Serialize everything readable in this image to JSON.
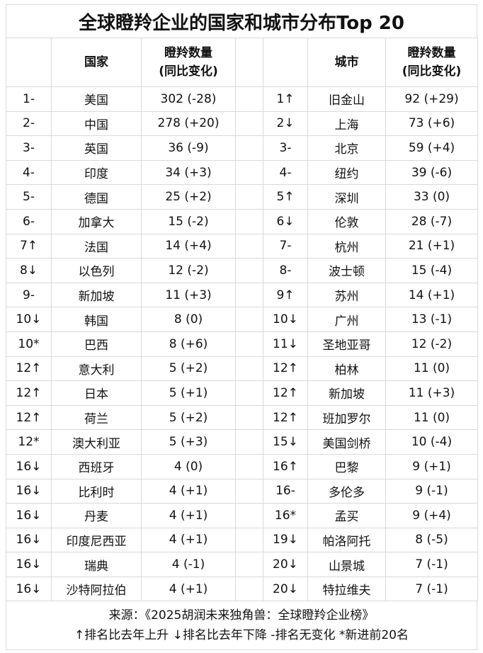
{
  "title": "全球瞪羚企业的国家和城市分布Top 20",
  "headers": {
    "country": "国家",
    "country_count": [
      "瞪羚数量",
      "(同比变化)"
    ],
    "city": "城市",
    "city_count": [
      "瞪羚数量",
      "(同比变化)"
    ]
  },
  "countries": [
    {
      "rank": "1-",
      "name": "美国",
      "count": "302 (-28)"
    },
    {
      "rank": "2-",
      "name": "中国",
      "count": "278 (+20)"
    },
    {
      "rank": "3-",
      "name": "英国",
      "count": "36 (-9)"
    },
    {
      "rank": "4-",
      "name": "印度",
      "count": "34 (+3)"
    },
    {
      "rank": "5-",
      "name": "德国",
      "count": "25 (+2)"
    },
    {
      "rank": "6-",
      "name": "加拿大",
      "count": "15 (-2)"
    },
    {
      "rank": "7↑",
      "name": "法国",
      "count": "14 (+4)"
    },
    {
      "rank": "8↓",
      "name": "以色列",
      "count": "12 (-2)"
    },
    {
      "rank": "9-",
      "name": "新加坡",
      "count": "11 (+3)"
    },
    {
      "rank": "10↓",
      "name": "韩国",
      "count": "8 (0)"
    },
    {
      "rank": "10*",
      "name": "巴西",
      "count": "8 (+6)"
    },
    {
      "rank": "12↑",
      "name": "意大利",
      "count": "5 (+2)"
    },
    {
      "rank": "12↑",
      "name": "日本",
      "count": "5 (+1)"
    },
    {
      "rank": "12↑",
      "name": "荷兰",
      "count": "5 (+2)"
    },
    {
      "rank": "12*",
      "name": "澳大利亚",
      "count": "5 (+3)"
    },
    {
      "rank": "16↓",
      "name": "西班牙",
      "count": "4 (0)"
    },
    {
      "rank": "16↓",
      "name": "比利时",
      "count": "4 (+1)"
    },
    {
      "rank": "16↓",
      "name": "丹麦",
      "count": "4 (+1)"
    },
    {
      "rank": "16↓",
      "name": "印度尼西亚",
      "count": "4 (+1)"
    },
    {
      "rank": "16↓",
      "name": "瑞典",
      "count": "4 (-1)"
    },
    {
      "rank": "16↓",
      "name": "沙特阿拉伯",
      "count": "4 (+1)"
    }
  ],
  "cities": [
    {
      "rank": "1↑",
      "name": "旧金山",
      "count": "92 (+29)"
    },
    {
      "rank": "2↓",
      "name": "上海",
      "count": "73 (+6)"
    },
    {
      "rank": "3-",
      "name": "北京",
      "count": "59 (+4)"
    },
    {
      "rank": "4-",
      "name": "纽约",
      "count": "39 (-6)"
    },
    {
      "rank": "5↑",
      "name": "深圳",
      "count": "33 (0)"
    },
    {
      "rank": "6↓",
      "name": "伦敦",
      "count": "28 (-7)"
    },
    {
      "rank": "7-",
      "name": "杭州",
      "count": "21 (+1)"
    },
    {
      "rank": "8-",
      "name": "波士顿",
      "count": "15 (-4)"
    },
    {
      "rank": "9↑",
      "name": "苏州",
      "count": "14 (+1)"
    },
    {
      "rank": "10↓",
      "name": "广州",
      "count": "13 (-1)"
    },
    {
      "rank": "11↓",
      "name": "圣地亚哥",
      "count": "12 (-2)"
    },
    {
      "rank": "12↑",
      "name": "柏林",
      "count": "11 (0)"
    },
    {
      "rank": "12↑",
      "name": "新加坡",
      "count": "11 (+3)"
    },
    {
      "rank": "12↑",
      "name": "班加罗尔",
      "count": "11 (0)"
    },
    {
      "rank": "15↓",
      "name": "美国剑桥",
      "count": "10 (-4)"
    },
    {
      "rank": "16↑",
      "name": "巴黎",
      "count": "9 (+1)"
    },
    {
      "rank": "16-",
      "name": "多伦多",
      "count": "9 (-1)"
    },
    {
      "rank": "16*",
      "name": "孟买",
      "count": "9 (+4)"
    },
    {
      "rank": "19↓",
      "name": "帕洛阿托",
      "count": "8 (-5)"
    },
    {
      "rank": "20↓",
      "name": "山景城",
      "count": "7 (-1)"
    },
    {
      "rank": "20↓",
      "name": "特拉维夫",
      "count": "7 (-1)"
    }
  ],
  "footer": {
    "source": "来源：《2025胡润未来独角兽：全球瞪羚企业榜》",
    "legend": "↑排名比去年上升  ↓排名比去年下降  -排名无变化  *新进前20名"
  }
}
